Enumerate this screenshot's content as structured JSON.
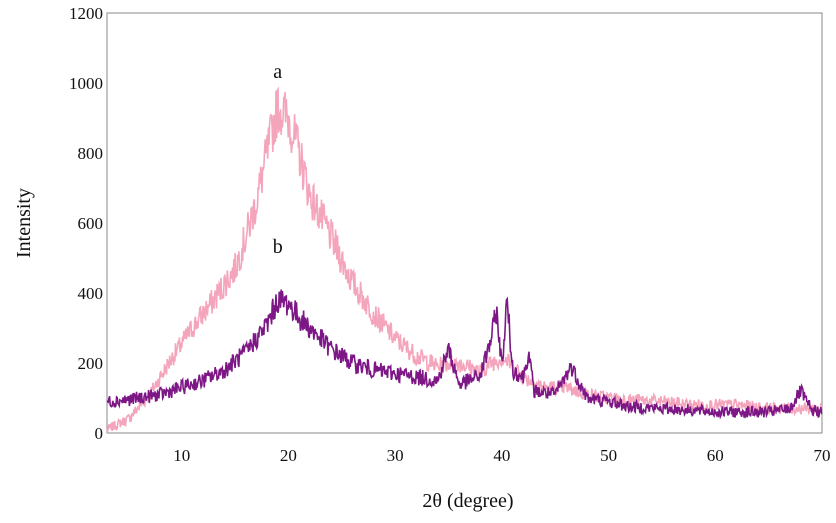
{
  "chart_data": {
    "type": "line",
    "xlabel": "2θ (degree)",
    "ylabel": "Intensity",
    "xlim": [
      3,
      70
    ],
    "ylim": [
      0,
      1200
    ],
    "x_ticks": [
      10,
      20,
      30,
      40,
      50,
      60,
      70
    ],
    "y_ticks": [
      0,
      200,
      400,
      600,
      800,
      1000,
      1200
    ],
    "grid": false,
    "series": [
      {
        "name": "a",
        "color": "#f4a4bb",
        "x": [
          3,
          5,
          7,
          9,
          11,
          13,
          15,
          16,
          17,
          18,
          19,
          20,
          21,
          22,
          24,
          26,
          28,
          30,
          32,
          34,
          35,
          36,
          38,
          39,
          40,
          41,
          42,
          44,
          46,
          48,
          50,
          52,
          55,
          58,
          60,
          62,
          65,
          68,
          70
        ],
        "y": [
          10,
          40,
          110,
          210,
          300,
          380,
          470,
          560,
          660,
          800,
          930,
          900,
          800,
          680,
          560,
          430,
          340,
          270,
          220,
          190,
          200,
          200,
          175,
          200,
          215,
          195,
          160,
          130,
          130,
          110,
          100,
          95,
          90,
          80,
          80,
          80,
          70,
          70,
          70
        ]
      },
      {
        "name": "b",
        "color": "#7d1786",
        "x": [
          3,
          5,
          8,
          10,
          12,
          14,
          16,
          18,
          19,
          20,
          21,
          22,
          24,
          26,
          28,
          30,
          32,
          34,
          35,
          36,
          37,
          38,
          39,
          39.5,
          40,
          40.5,
          41,
          42,
          42.5,
          43,
          45,
          46.5,
          48,
          50,
          52,
          55,
          58,
          60,
          62,
          65,
          67,
          68,
          69,
          70
        ],
        "y": [
          90,
          95,
          110,
          130,
          150,
          180,
          230,
          310,
          380,
          370,
          330,
          300,
          240,
          200,
          180,
          170,
          160,
          150,
          240,
          140,
          150,
          165,
          270,
          350,
          190,
          380,
          180,
          160,
          230,
          120,
          110,
          190,
          100,
          90,
          75,
          70,
          65,
          60,
          60,
          60,
          70,
          120,
          65,
          60
        ]
      }
    ],
    "annotations": [
      {
        "text": "a",
        "x": 19,
        "y": 1015
      },
      {
        "text": "b",
        "x": 19,
        "y": 515
      }
    ]
  }
}
